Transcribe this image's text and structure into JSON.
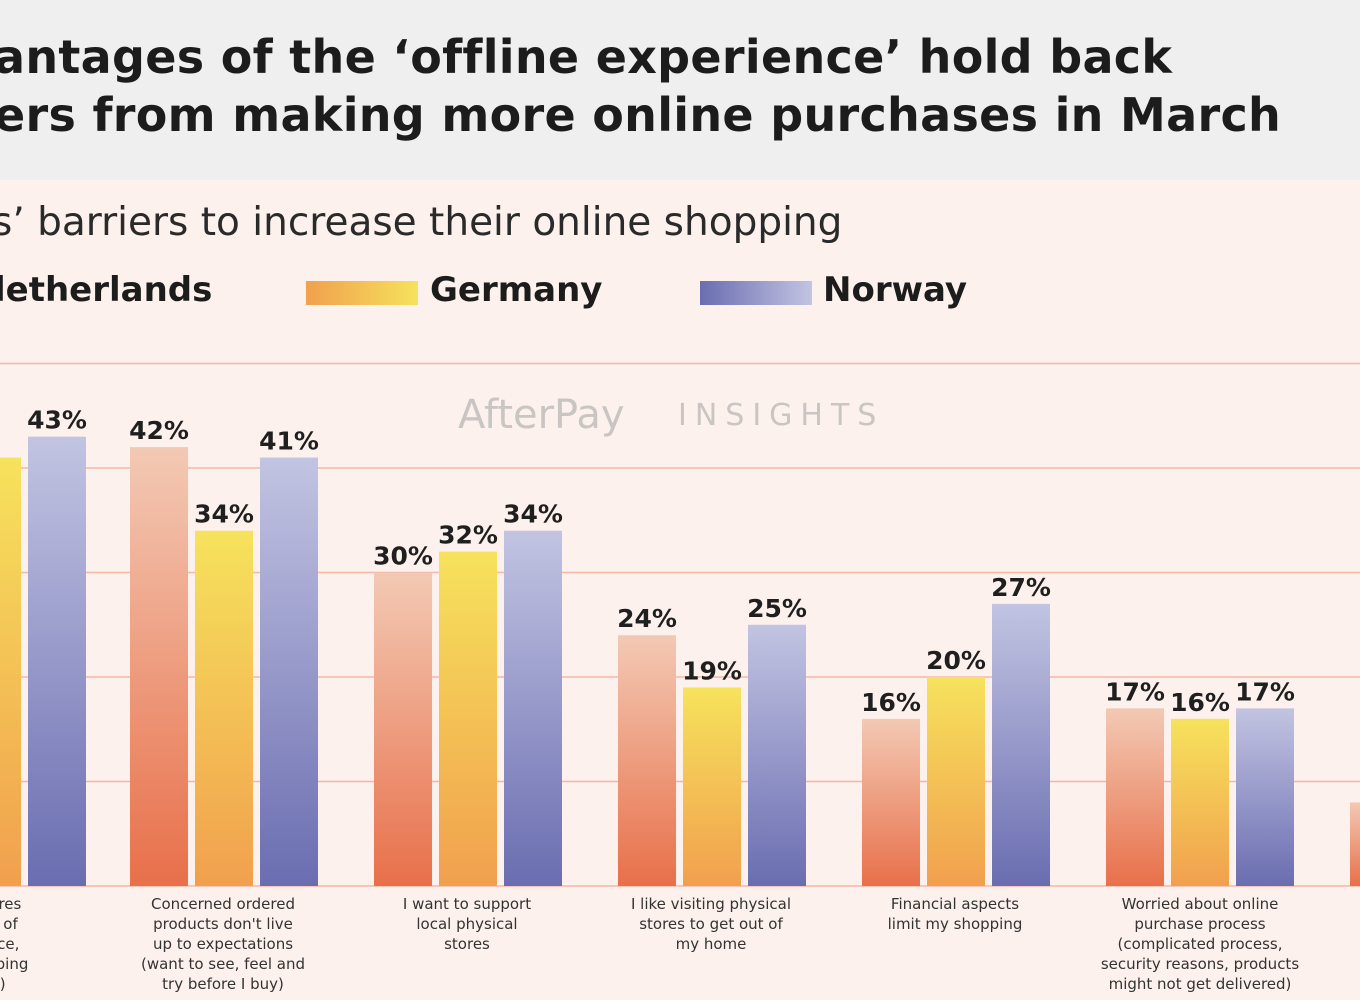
{
  "title_line1": "antages of the ‘offline experience’ hold back",
  "title_line2": "ers from making more online purchases in March",
  "subtitle": "s’ barriers to increase their online shopping",
  "watermark_brand": "AfterPay",
  "watermark_insights": "INSIGHTS",
  "legend": [
    {
      "name": "Netherlands",
      "label": "letherlands",
      "color_start": "#f3c9b4",
      "color_end": "#e8704a"
    },
    {
      "name": "Germany",
      "label": "Germany",
      "color_start": "#f1a04e",
      "color_end": "#f6e25c"
    },
    {
      "name": "Norway",
      "label": "Norway",
      "color_start": "#6a6db0",
      "color_end": "#c2c4e2"
    }
  ],
  "chart_data": {
    "type": "bar",
    "title": "antages of the ‘offline experience’ hold back ers from making more online purchases in March",
    "subtitle": "s’ barriers to increase their online shopping",
    "ylim": [
      0,
      50
    ],
    "gridlines": true,
    "categories": [
      "l stores\nnge of\nervice,\nshopping\nce)",
      "Concerned ordered\nproducts don't live\nup to expectations\n(want to see, feel and\ntry before I buy)",
      "I want to support\nlocal physical\nstores",
      "I like visiting physical\nstores to get out of\nmy home",
      "Financial aspects\nlimit my shopping",
      "Worried about online\npurchase process\n(complicated process,\nsecurity reasons, products\nmight not get delivered)",
      ""
    ],
    "series": [
      {
        "name": "Netherlands",
        "values": [
          null,
          42,
          30,
          24,
          16,
          17,
          null
        ],
        "labels": [
          "",
          "42%",
          "30%",
          "24%",
          "16%",
          "17%",
          ""
        ]
      },
      {
        "name": "Germany",
        "values": [
          41,
          34,
          32,
          19,
          20,
          16,
          null
        ],
        "labels": [
          "",
          "34%",
          "32%",
          "19%",
          "20%",
          "16%",
          ""
        ]
      },
      {
        "name": "Norway",
        "values": [
          43,
          41,
          34,
          25,
          27,
          17,
          null
        ],
        "labels": [
          "43%",
          "41%",
          "34%",
          "25%",
          "27%",
          "17%",
          ""
        ]
      }
    ],
    "partial_bar": {
      "series": "Netherlands",
      "value": 8
    }
  }
}
